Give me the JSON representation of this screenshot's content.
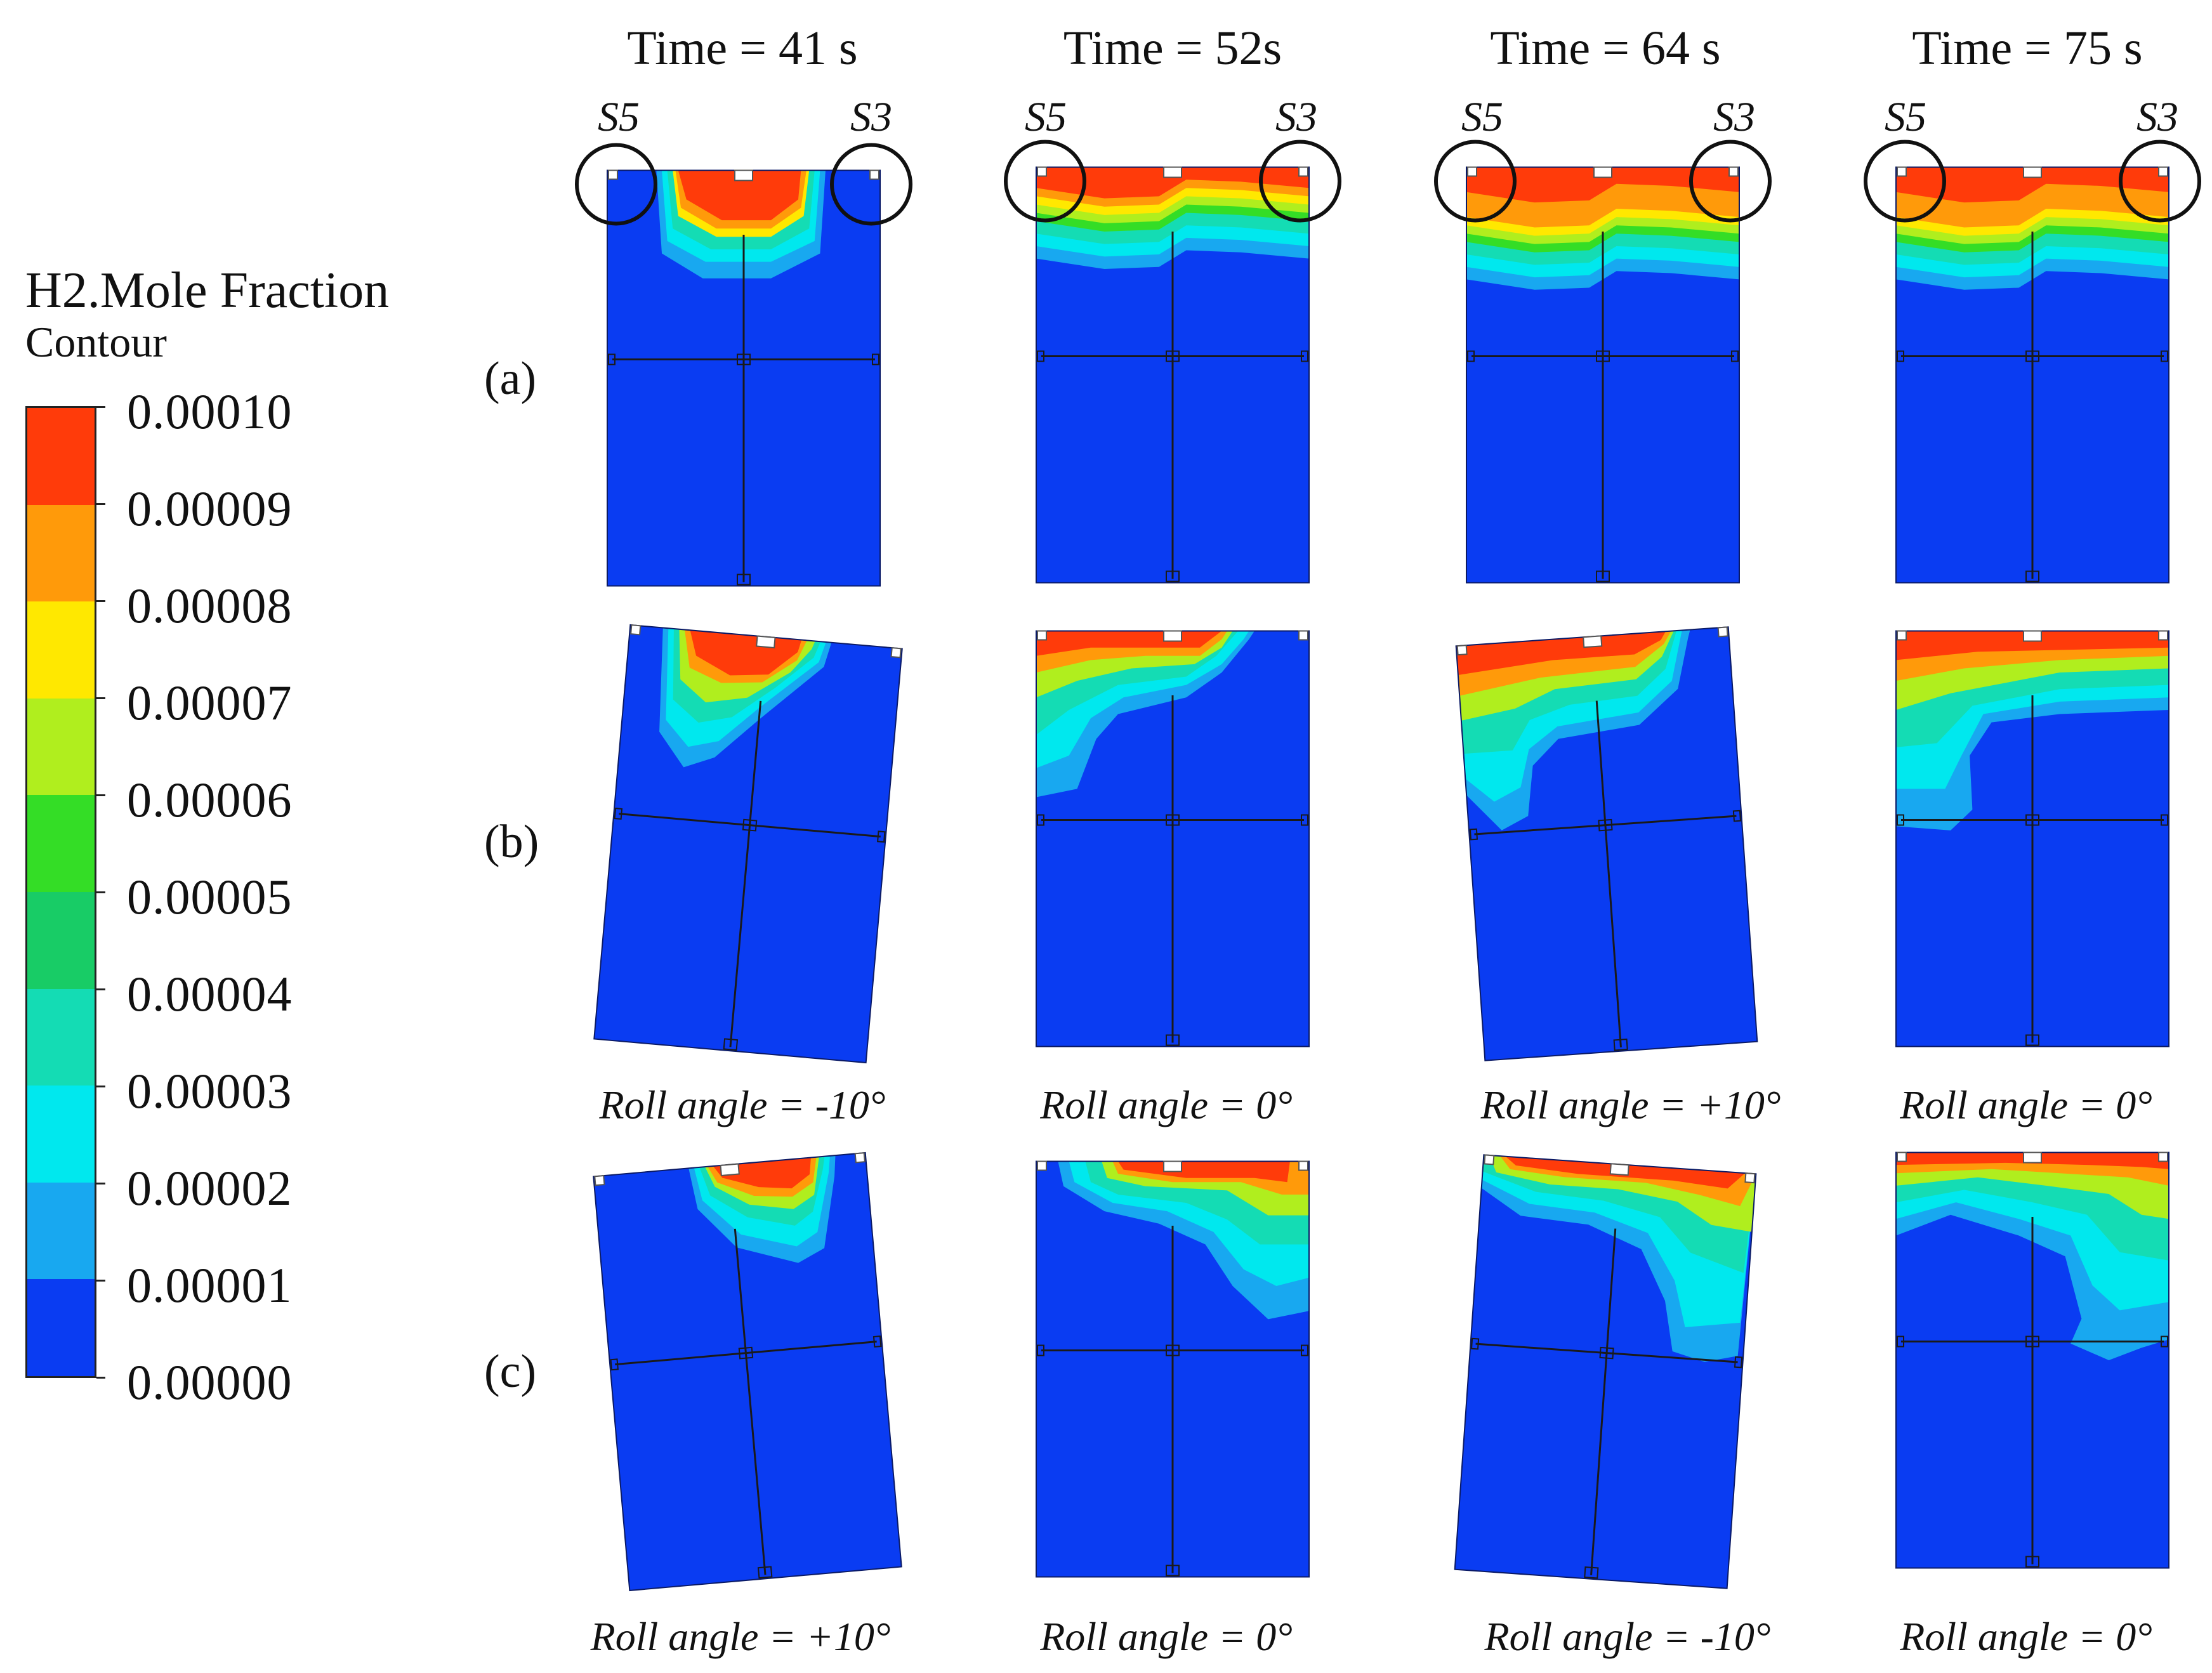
{
  "legend": {
    "title": "H2.Mole Fraction",
    "subtitle": "Contour",
    "ticks": [
      "0.00010",
      "0.00009",
      "0.00008",
      "0.00007",
      "0.00006",
      "0.00005",
      "0.00004",
      "0.00003",
      "0.00002",
      "0.00001",
      "0.00000"
    ],
    "band_colors_top_to_bottom": [
      "#ff3b0a",
      "#ff9a0a",
      "#ffe800",
      "#b0ee1e",
      "#34dd26",
      "#18cc66",
      "#14dcb4",
      "#00e8ee",
      "#18a8f0",
      "#0a3cf2"
    ]
  },
  "columns": [
    {
      "time": "Time = 41 s"
    },
    {
      "time": "Time = 52s"
    },
    {
      "time": "Time = 64 s"
    },
    {
      "time": "Time = 75 s"
    }
  ],
  "markers": {
    "left": "S5",
    "right": "S3"
  },
  "rows": [
    {
      "label": "(a)",
      "roll_labels": []
    },
    {
      "label": "(b)",
      "roll_labels": [
        "Roll angle = -10°",
        "Roll angle = 0°",
        "Roll angle = +10°",
        "Roll angle = 0°"
      ]
    },
    {
      "label": "(c)",
      "roll_labels": [
        "Roll angle = +10°",
        "Roll angle = 0°",
        "Roll angle = -10°",
        "Roll angle = 0°"
      ]
    }
  ],
  "colors": {
    "domain_blue": "#0a3cf2",
    "frame": "#1a1a1a",
    "circle": "#111111"
  }
}
